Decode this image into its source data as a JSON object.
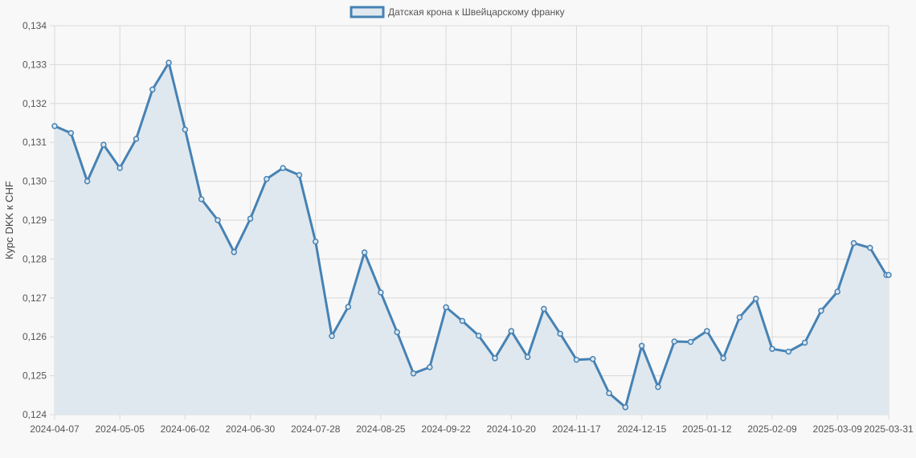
{
  "chart_data": {
    "type": "line",
    "ylabel": "Курс DKK к CHF",
    "ylim": [
      0.124,
      0.134
    ],
    "yticks": [
      "0,134",
      "0,133",
      "0,132",
      "0,131",
      "0,130",
      "0,129",
      "0,128",
      "0,127",
      "0,126",
      "0,125",
      "0,124"
    ],
    "xticks": [
      "2024-04-07",
      "2024-05-05",
      "2024-06-02",
      "2024-06-30",
      "2024-07-28",
      "2024-08-25",
      "2024-09-22",
      "2024-10-20",
      "2024-11-17",
      "2024-12-15",
      "2025-01-12",
      "2025-02-09",
      "2025-03-09",
      "2025-03-31"
    ],
    "x": [
      "2024-04-07",
      "2024-04-14",
      "2024-04-21",
      "2024-04-28",
      "2024-05-05",
      "2024-05-12",
      "2024-05-19",
      "2024-05-26",
      "2024-06-02",
      "2024-06-09",
      "2024-06-16",
      "2024-06-23",
      "2024-06-30",
      "2024-07-07",
      "2024-07-14",
      "2024-07-21",
      "2024-07-28",
      "2024-08-04",
      "2024-08-11",
      "2024-08-18",
      "2024-08-25",
      "2024-09-01",
      "2024-09-08",
      "2024-09-15",
      "2024-09-22",
      "2024-09-29",
      "2024-10-06",
      "2024-10-13",
      "2024-10-20",
      "2024-10-27",
      "2024-11-03",
      "2024-11-10",
      "2024-11-17",
      "2024-11-24",
      "2024-12-01",
      "2024-12-08",
      "2024-12-15",
      "2024-12-22",
      "2024-12-29",
      "2025-01-05",
      "2025-01-12",
      "2025-01-19",
      "2025-01-26",
      "2025-02-02",
      "2025-02-09",
      "2025-02-16",
      "2025-02-23",
      "2025-03-02",
      "2025-03-09",
      "2025-03-16",
      "2025-03-23",
      "2025-03-30",
      "2025-03-31"
    ],
    "series": [
      {
        "name": "Датская крона к Швейцарскому франку",
        "color": "#4682b4",
        "fill": "#dfe8ef",
        "values": [
          0.13142,
          0.13124,
          0.13,
          0.13094,
          0.13034,
          0.13109,
          0.13236,
          0.13305,
          0.13133,
          0.12954,
          0.129,
          0.12818,
          0.12904,
          0.13006,
          0.13034,
          0.13016,
          0.12845,
          0.12602,
          0.12677,
          0.12817,
          0.12714,
          0.12612,
          0.12506,
          0.12522,
          0.12676,
          0.12641,
          0.12603,
          0.12545,
          0.12615,
          0.12548,
          0.12672,
          0.12608,
          0.12541,
          0.12543,
          0.12455,
          0.12419,
          0.12577,
          0.12471,
          0.12588,
          0.12587,
          0.12615,
          0.12545,
          0.1265,
          0.12698,
          0.12569,
          0.12562,
          0.12585,
          0.12667,
          0.12716,
          0.12841,
          0.12829,
          0.12759,
          0.12759
        ]
      }
    ],
    "grid": true,
    "legend": "top-center"
  }
}
